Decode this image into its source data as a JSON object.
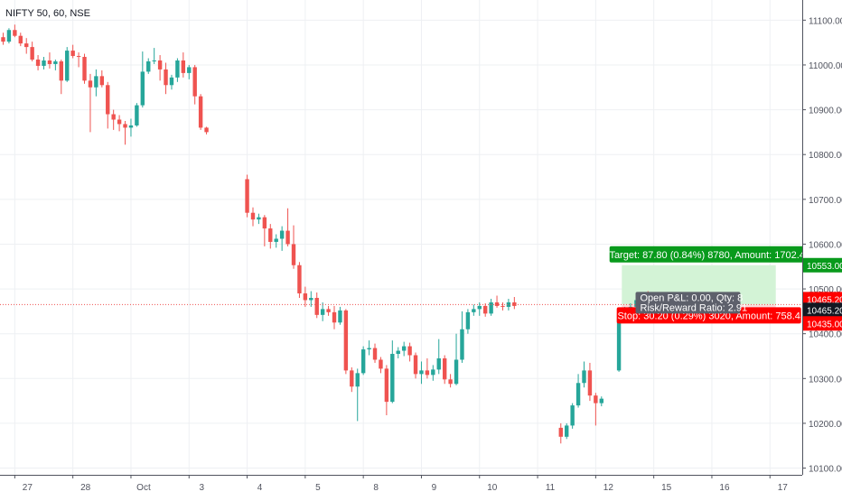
{
  "header": {
    "symbol_title": "NIFTY 50, 60, NSE"
  },
  "colors": {
    "up": "#26a69a",
    "down": "#ef5350",
    "grid": "#eef0f3",
    "profit_zone": "#d3f3d6",
    "loss_zone": "#fbdada",
    "target_badge": "#089a1c",
    "stop_badge": "#ff0000",
    "pnl_badge": "#5d606b",
    "axis_text": "#50535e",
    "current_price_line": "#ef5350"
  },
  "chart_data": {
    "type": "candlestick",
    "title": "NIFTY 50, 60, NSE",
    "ylim": [
      10085,
      11145
    ],
    "yticks": [
      10100,
      10200,
      10300,
      10400,
      10500,
      10600,
      10700,
      10800,
      10900,
      11000,
      11100
    ],
    "ytick_labels": [
      "10100.00",
      "10200.00",
      "10300.00",
      "10400.00",
      "10500.00",
      "10600.00",
      "10700.00",
      "10800.00",
      "10900.00",
      "11000.00",
      "11100.00"
    ],
    "xticks": [
      {
        "label": "27",
        "bar": 2
      },
      {
        "label": "28",
        "bar": 12
      },
      {
        "label": "Oct",
        "bar": 22
      },
      {
        "label": "3",
        "bar": 32
      },
      {
        "label": "4",
        "bar": 42
      },
      {
        "label": "5",
        "bar": 52
      },
      {
        "label": "8",
        "bar": 62
      },
      {
        "label": "9",
        "bar": 72
      },
      {
        "label": "10",
        "bar": 82
      },
      {
        "label": "11",
        "bar": 92
      },
      {
        "label": "12",
        "bar": 102
      },
      {
        "label": "15",
        "bar": 112
      },
      {
        "label": "16",
        "bar": 122
      },
      {
        "label": "17",
        "bar": 132
      }
    ],
    "candles": [
      [
        11062,
        11072,
        11045,
        11052
      ],
      [
        11052,
        11082,
        11048,
        11078
      ],
      [
        11078,
        11090,
        11062,
        11065
      ],
      [
        11065,
        11072,
        11042,
        11048
      ],
      [
        11048,
        11060,
        11025,
        11040
      ],
      [
        11040,
        11052,
        11008,
        11012
      ],
      [
        11012,
        11022,
        10988,
        10998
      ],
      [
        10998,
        11018,
        10990,
        11010
      ],
      [
        11010,
        11028,
        10992,
        11002
      ],
      [
        11002,
        11012,
        10988,
        11008
      ],
      [
        11008,
        11012,
        10935,
        10965
      ],
      [
        10965,
        11040,
        10962,
        11032
      ],
      [
        11032,
        11045,
        11015,
        11020
      ],
      [
        11020,
        11028,
        10995,
        11018
      ],
      [
        11018,
        11025,
        10958,
        10965
      ],
      [
        10965,
        10980,
        10850,
        10950
      ],
      [
        10950,
        10990,
        10930,
        10975
      ],
      [
        10975,
        10988,
        10950,
        10955
      ],
      [
        10955,
        10962,
        10858,
        10890
      ],
      [
        10890,
        10900,
        10855,
        10878
      ],
      [
        10878,
        10888,
        10852,
        10868
      ],
      [
        10868,
        10875,
        10822,
        10860
      ],
      [
        10860,
        10880,
        10840,
        10865
      ],
      [
        10865,
        10915,
        10862,
        10910
      ],
      [
        10910,
        11030,
        10905,
        10985
      ],
      [
        10985,
        11015,
        10980,
        11008
      ],
      [
        11008,
        11038,
        11002,
        11010
      ],
      [
        11010,
        11022,
        10965,
        10990
      ],
      [
        10990,
        11005,
        10935,
        10955
      ],
      [
        10955,
        10978,
        10945,
        10972
      ],
      [
        10972,
        11015,
        10962,
        11010
      ],
      [
        11010,
        11028,
        10972,
        10982
      ],
      [
        10982,
        11000,
        10968,
        10995
      ],
      [
        10995,
        11000,
        10912,
        10930
      ],
      [
        10930,
        10935,
        10855,
        10860
      ],
      [
        10860,
        10862,
        10845,
        10850
      ],
      null,
      null,
      null,
      null,
      null,
      null,
      [
        10745,
        10755,
        10660,
        10670
      ],
      [
        10670,
        10682,
        10640,
        10655
      ],
      [
        10655,
        10668,
        10645,
        10660
      ],
      [
        10660,
        10665,
        10595,
        10635
      ],
      [
        10635,
        10645,
        10590,
        10605
      ],
      [
        10605,
        10622,
        10592,
        10612
      ],
      [
        10612,
        10640,
        10585,
        10630
      ],
      [
        10630,
        10680,
        10595,
        10600
      ],
      [
        10600,
        10642,
        10545,
        10553
      ],
      [
        10553,
        10560,
        10480,
        10490
      ],
      [
        10490,
        10505,
        10460,
        10475
      ],
      [
        10475,
        10495,
        10460,
        10480
      ],
      [
        10480,
        10492,
        10435,
        10442
      ],
      [
        10442,
        10470,
        10428,
        10455
      ],
      [
        10455,
        10462,
        10440,
        10448
      ],
      [
        10448,
        10462,
        10410,
        10425
      ],
      [
        10425,
        10460,
        10420,
        10452
      ],
      [
        10452,
        10455,
        10310,
        10318
      ],
      [
        10318,
        10325,
        10270,
        10282
      ],
      [
        10282,
        10322,
        10205,
        10312
      ],
      [
        10312,
        10372,
        10308,
        10365
      ],
      [
        10365,
        10385,
        10352,
        10368
      ],
      [
        10368,
        10378,
        10335,
        10342
      ],
      [
        10342,
        10348,
        10312,
        10322
      ],
      [
        10322,
        10330,
        10218,
        10248
      ],
      [
        10248,
        10385,
        10245,
        10355
      ],
      [
        10355,
        10370,
        10345,
        10362
      ],
      [
        10362,
        10382,
        10350,
        10372
      ],
      [
        10372,
        10380,
        10338,
        10352
      ],
      [
        10352,
        10358,
        10300,
        10310
      ],
      [
        10310,
        10338,
        10288,
        10318
      ],
      [
        10318,
        10345,
        10300,
        10308
      ],
      [
        10308,
        10330,
        10295,
        10320
      ],
      [
        10320,
        10388,
        10310,
        10345
      ],
      [
        10345,
        10352,
        10288,
        10298
      ],
      [
        10298,
        10310,
        10280,
        10288
      ],
      [
        10288,
        10400,
        10285,
        10342
      ],
      [
        10342,
        10450,
        10335,
        10410
      ],
      [
        10410,
        10455,
        10400,
        10448
      ],
      [
        10448,
        10465,
        10440,
        10455
      ],
      [
        10455,
        10470,
        10440,
        10462
      ],
      [
        10462,
        10468,
        10438,
        10445
      ],
      [
        10445,
        10478,
        10440,
        10470
      ],
      [
        10470,
        10485,
        10458,
        10462
      ],
      [
        10462,
        10470,
        10452,
        10460
      ],
      [
        10460,
        10478,
        10452,
        10470
      ],
      [
        10470,
        10482,
        10455,
        10462
      ],
      null,
      null,
      null,
      null,
      null,
      null,
      null,
      [
        10190,
        10200,
        10155,
        10170
      ],
      [
        10170,
        10200,
        10165,
        10195
      ],
      [
        10195,
        10245,
        10188,
        10240
      ],
      [
        10240,
        10310,
        10235,
        10290
      ],
      [
        10290,
        10338,
        10280,
        10318
      ],
      [
        10318,
        10335,
        10250,
        10262
      ],
      [
        10262,
        10268,
        10195,
        10245
      ],
      [
        10245,
        10260,
        10238,
        10255
      ],
      null,
      null,
      [
        10318,
        10450,
        10315,
        10445
      ],
      [
        10445,
        10460,
        10435,
        10452
      ],
      [
        10452,
        10468,
        10445,
        10460
      ],
      [
        10460,
        10480,
        10450,
        10475
      ],
      [
        10475,
        10492,
        10465,
        10485
      ],
      [
        10485,
        10495,
        10470,
        10478
      ],
      [
        10478,
        10486,
        10460,
        10465
      ]
    ],
    "position": {
      "type": "long",
      "entry_bar": 107,
      "end_bar": 133,
      "entry": 10465.2,
      "target": 10553.0,
      "stop": 10435.0
    },
    "current_price": 10465.2,
    "price_badges": {
      "target": "10553.00",
      "entry": "10465.20",
      "current": "10465.20",
      "stop": "10435.00"
    },
    "annotations": {
      "target_label": "Target: 87.80 (0.84%) 8780, Amount: 1702.4",
      "stop_label": "Stop: 30.20 (0.29%) 3020, Amount: 758.4",
      "pnl_line1": "Open P&L: 0.00, Qty: 8",
      "pnl_line2": "Risk/Reward Ratio: 2.91"
    }
  }
}
